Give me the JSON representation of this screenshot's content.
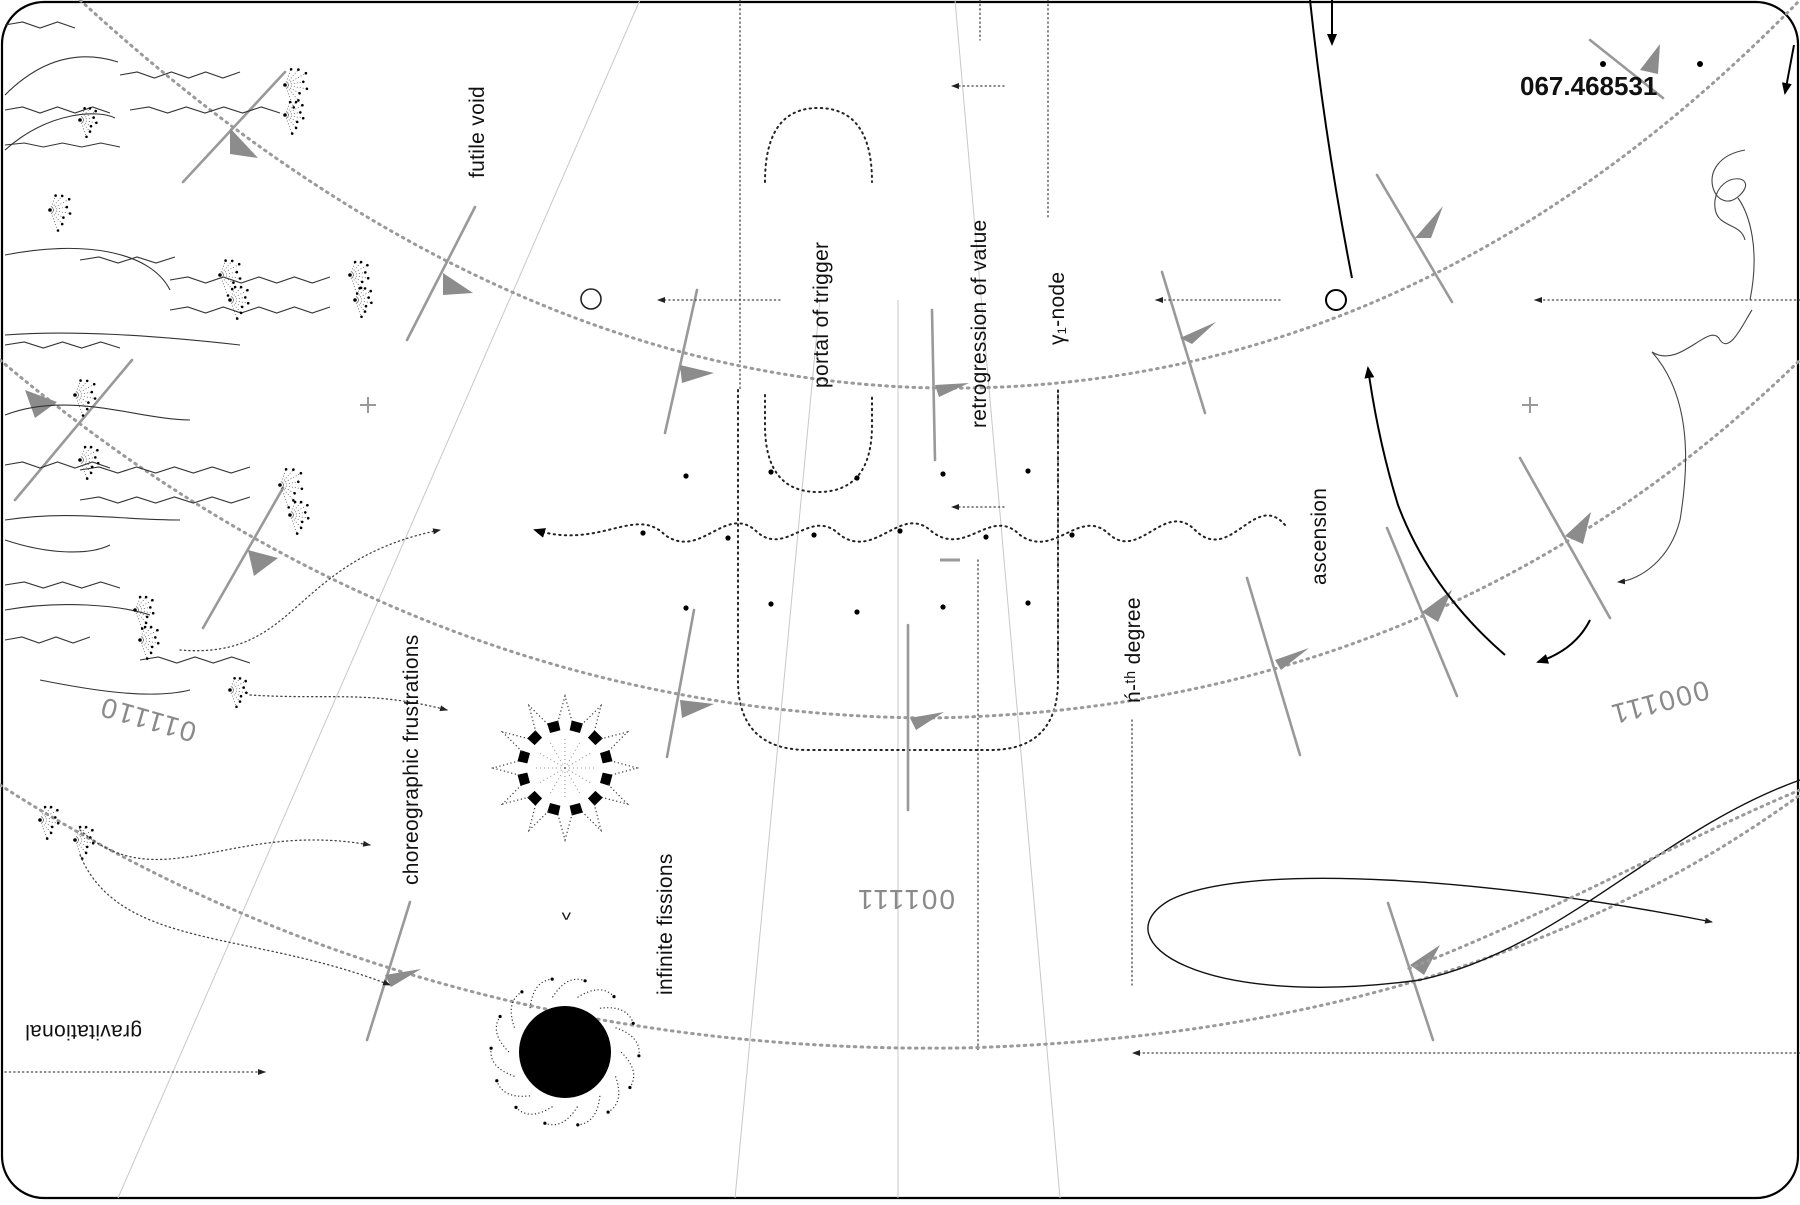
{
  "readout": "067.468531",
  "labels": {
    "futile_void": "futile void",
    "portal_of_trigger": "portal of trigger",
    "retrogression_of_value": "retrogression of value",
    "gamma_node": "γ₁-node",
    "ascension": "ascension",
    "nth_degree": "ń-ᵗʰ degree",
    "choreographic_frustrations": "choreographic frustrations",
    "infinite_fissions": "infinite fissions",
    "gravitational": "gravitational",
    "caret": "^"
  },
  "binary_codes": {
    "left": "011110",
    "right": "000111",
    "bottom": "001111"
  },
  "icons": [
    "black-hole-icon",
    "spiked-ring-icon",
    "open-circle-icon",
    "crosshair-plus-icon",
    "direction-arrow-icon",
    "burst-node-icon"
  ],
  "colors": {
    "ink": "#111111",
    "orbit_gray": "#9a9a9a",
    "faint_line": "#c8c8c8",
    "background": "#ffffff"
  }
}
